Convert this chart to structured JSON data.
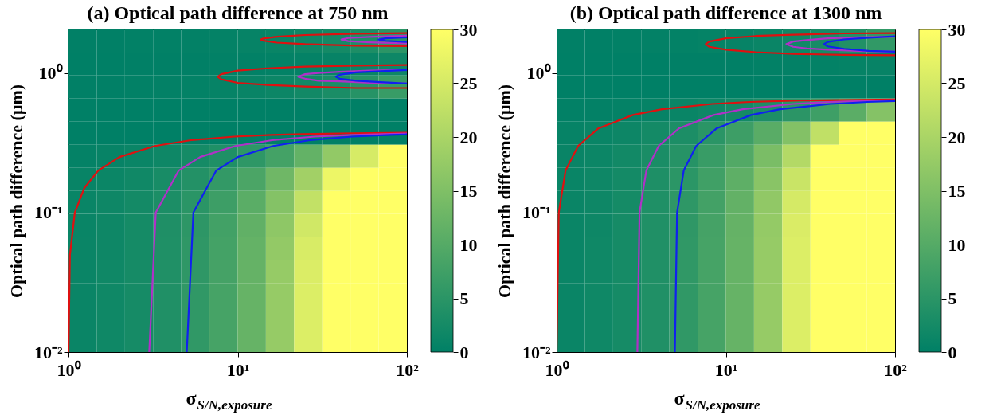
{
  "chart_data": [
    {
      "type": "heatmap",
      "title": "(a) Optical path difference at 750 nm",
      "xlabel": "σ$_{S/N,exposure}$",
      "ylabel": "Optical path difference  (μm)",
      "log": "xy",
      "xlim": [
        1,
        100
      ],
      "ylim": [
        0.01,
        2.05
      ],
      "xticks": [
        {
          "value": 1,
          "label": "10⁰"
        },
        {
          "value": 10,
          "label": "10¹"
        },
        {
          "value": 100,
          "label": "10²"
        }
      ],
      "yticks": [
        {
          "value": 0.01,
          "label": "10⁻²"
        },
        {
          "value": 0.1,
          "label": "10⁻¹"
        },
        {
          "value": 1,
          "label": "10⁰"
        }
      ],
      "clim": [
        0,
        30
      ],
      "cticks": [
        0,
        5,
        10,
        15,
        20,
        25,
        30
      ],
      "x": [
        1.21,
        1.78,
        2.61,
        3.83,
        5.62,
        8.25,
        12.1,
        17.8,
        26.1,
        38.3,
        56.2,
        82.5
      ],
      "y": [
        1.695,
        1.159,
        0.792,
        0.542,
        0.37,
        0.253,
        0.173,
        0.118,
        0.081,
        0.0553,
        0.0378,
        0.0259,
        0.0177,
        0.0121
      ],
      "cells": [
        [
          0.1,
          0.1,
          0.2,
          0.2,
          0.3,
          0.5,
          0.7,
          1.1,
          1.6,
          2.3,
          3.4,
          5.0
        ],
        [
          0.0,
          0.0,
          0.1,
          0.1,
          0.1,
          0.2,
          0.2,
          0.4,
          0.5,
          0.8,
          1.1,
          1.7
        ],
        [
          0.1,
          0.1,
          0.2,
          0.3,
          0.4,
          0.7,
          1.0,
          1.4,
          2.1,
          3.1,
          4.5,
          6.6
        ],
        [
          0,
          0,
          0,
          0,
          0,
          0,
          0,
          0,
          0,
          0,
          0,
          0
        ],
        [
          0,
          0,
          0,
          0,
          0,
          0,
          0,
          0,
          0,
          0,
          0,
          0
        ],
        [
          0.5,
          0.8,
          1.2,
          1.7,
          2.5,
          3.7,
          5.4,
          8.0,
          11.7,
          17.2,
          25.2,
          30
        ],
        [
          0.9,
          1.3,
          1.9,
          2.8,
          4.1,
          6.0,
          8.8,
          13.0,
          19.0,
          27.9,
          30,
          30
        ],
        [
          1.1,
          1.6,
          2.3,
          3.3,
          4.9,
          7.2,
          10.6,
          15.5,
          22.8,
          30,
          30,
          30
        ],
        [
          1.1,
          1.7,
          2.5,
          3.6,
          5.3,
          7.8,
          11.4,
          16.7,
          24.5,
          30,
          30,
          30
        ],
        [
          1.2,
          1.7,
          2.5,
          3.7,
          5.5,
          8.0,
          11.8,
          17.3,
          25.4,
          30,
          30,
          30
        ],
        [
          1.2,
          1.8,
          2.6,
          3.8,
          5.5,
          8.1,
          11.9,
          17.6,
          25.8,
          30,
          30,
          30
        ],
        [
          1.2,
          1.8,
          2.6,
          3.8,
          5.6,
          8.2,
          12.0,
          17.7,
          25.9,
          30,
          30,
          30
        ],
        [
          1.2,
          1.8,
          2.6,
          3.8,
          5.6,
          8.2,
          12.0,
          17.7,
          25.9,
          30,
          30,
          30
        ],
        [
          1.2,
          1.8,
          2.6,
          3.8,
          5.6,
          8.2,
          12.0,
          17.7,
          25.9,
          30,
          30,
          30
        ]
      ],
      "series": [
        {
          "type": "line",
          "color": "#e01010",
          "x": [
            1.0,
            1.02,
            1.09,
            1.24,
            1.5,
            2.0,
            3.24,
            5.3,
            9.5,
            15.9,
            23.9,
            47.8,
            100
          ],
          "values": [
            0.01,
            0.05,
            0.1,
            0.15,
            0.2,
            0.25,
            0.3,
            0.33,
            0.35,
            0.36,
            0.365,
            0.37,
            0.373
          ]
        },
        {
          "type": "line",
          "color": "#b030c8",
          "x": [
            3.0,
            3.28,
            4.48,
            6.0,
            9.7,
            16.0,
            28.6,
            47.8,
            71.6,
            100
          ],
          "values": [
            0.01,
            0.1,
            0.2,
            0.25,
            0.3,
            0.33,
            0.35,
            0.36,
            0.365,
            0.368
          ]
        },
        {
          "type": "line",
          "color": "#1020f0",
          "x": [
            5.0,
            5.47,
            7.47,
            10.0,
            16.2,
            26.7,
            47.6,
            79.6,
            100
          ],
          "values": [
            0.01,
            0.1,
            0.2,
            0.25,
            0.3,
            0.33,
            0.35,
            0.36,
            0.363
          ]
        },
        {
          "type": "line",
          "color": "#e01010",
          "x": [
            100,
            50,
            25,
            15,
            10,
            8,
            7.6,
            8,
            10,
            15,
            25,
            50,
            100
          ],
          "values": [
            1.14,
            1.13,
            1.11,
            1.08,
            1.04,
            0.98,
            0.94,
            0.9,
            0.85,
            0.82,
            0.8,
            0.78,
            0.78
          ]
        },
        {
          "type": "line",
          "color": "#b030c8",
          "x": [
            100,
            60,
            40,
            30,
            25,
            22.8,
            25,
            30,
            40,
            60,
            100
          ],
          "values": [
            1.05,
            1.04,
            1.02,
            1.0,
            0.98,
            0.94,
            0.91,
            0.88,
            0.87,
            0.85,
            0.84
          ]
        },
        {
          "type": "line",
          "color": "#1020f0",
          "x": [
            100,
            70,
            50,
            40,
            38,
            40,
            50,
            70,
            100
          ],
          "values": [
            1.05,
            1.03,
            1.01,
            0.97,
            0.94,
            0.91,
            0.88,
            0.86,
            0.84
          ]
        },
        {
          "type": "line",
          "color": "#e01010",
          "x": [
            100,
            50,
            25,
            17,
            14,
            13.7,
            14,
            17,
            25,
            50,
            100
          ],
          "values": [
            1.93,
            1.91,
            1.87,
            1.82,
            1.76,
            1.735,
            1.71,
            1.65,
            1.61,
            1.57,
            1.56
          ]
        },
        {
          "type": "line",
          "color": "#b030c8",
          "x": [
            100,
            60,
            45,
            41,
            45,
            60,
            100
          ],
          "values": [
            1.85,
            1.81,
            1.78,
            1.735,
            1.69,
            1.66,
            1.63
          ]
        },
        {
          "type": "line",
          "color": "#1020f0",
          "x": [
            100,
            75,
            68,
            75,
            100
          ],
          "values": [
            1.8,
            1.77,
            1.735,
            1.7,
            1.67
          ]
        }
      ]
    },
    {
      "type": "heatmap",
      "title": "(b) Optical path difference at 1300 nm",
      "xlabel": "σ$_{S/N,exposure}$",
      "ylabel": "Optical path difference  (μm)",
      "log": "xy",
      "xlim": [
        1,
        100
      ],
      "ylim": [
        0.01,
        2.05
      ],
      "xticks": [
        {
          "value": 1,
          "label": "10⁰"
        },
        {
          "value": 10,
          "label": "10¹"
        },
        {
          "value": 100,
          "label": "10²"
        }
      ],
      "yticks": [
        {
          "value": 0.01,
          "label": "10⁻²"
        },
        {
          "value": 0.1,
          "label": "10⁻¹"
        },
        {
          "value": 1,
          "label": "10⁰"
        }
      ],
      "clim": [
        0,
        30
      ],
      "cticks": [
        0,
        5,
        10,
        15,
        20,
        25,
        30
      ],
      "x": [
        1.21,
        1.78,
        2.61,
        3.83,
        5.62,
        8.25,
        12.1,
        17.8,
        26.1,
        38.3,
        56.2,
        82.5
      ],
      "y": [
        1.695,
        1.159,
        0.792,
        0.542,
        0.37,
        0.253,
        0.173,
        0.118,
        0.081,
        0.0553,
        0.0378,
        0.0259,
        0.0177,
        0.0121
      ],
      "cells": [
        [
          0.1,
          0.1,
          0.2,
          0.3,
          0.4,
          0.6,
          0.8,
          1.2,
          1.8,
          2.7,
          3.9,
          5.8
        ],
        [
          0.0,
          0.0,
          0.0,
          0.0,
          0.1,
          0.1,
          0.1,
          0.2,
          0.3,
          0.4,
          0.6,
          0.8
        ],
        [
          0,
          0,
          0,
          0,
          0,
          0,
          0,
          0,
          0,
          0,
          0,
          0
        ],
        [
          0.2,
          0.3,
          0.5,
          0.7,
          1.1,
          1.6,
          2.3,
          3.4,
          5.0,
          7.3,
          10.7,
          15.7
        ],
        [
          0.7,
          1.1,
          1.5,
          2.3,
          3.3,
          4.9,
          7.2,
          10.5,
          15.4,
          22.6,
          30,
          30
        ],
        [
          1.0,
          1.4,
          2.1,
          3.1,
          4.5,
          6.6,
          9.7,
          14.3,
          21.0,
          30,
          30,
          30
        ],
        [
          1.1,
          1.6,
          2.4,
          3.5,
          5.1,
          7.5,
          11.0,
          16.1,
          23.7,
          30,
          30,
          30
        ],
        [
          1.2,
          1.7,
          2.5,
          3.7,
          5.4,
          7.9,
          11.6,
          17.0,
          25.0,
          30,
          30,
          30
        ],
        [
          1.2,
          1.7,
          2.6,
          3.8,
          5.5,
          8.1,
          11.9,
          17.4,
          25.6,
          30,
          30,
          30
        ],
        [
          1.2,
          1.8,
          2.6,
          3.8,
          5.6,
          8.2,
          12.0,
          17.7,
          25.9,
          30,
          30,
          30
        ],
        [
          1.2,
          1.8,
          2.6,
          3.8,
          5.6,
          8.2,
          12.0,
          17.7,
          25.9,
          30,
          30,
          30
        ],
        [
          1.2,
          1.8,
          2.6,
          3.8,
          5.6,
          8.2,
          12.0,
          17.7,
          25.9,
          30,
          30,
          30
        ],
        [
          1.2,
          1.8,
          2.6,
          3.8,
          5.6,
          8.2,
          12.0,
          17.7,
          25.9,
          30,
          30,
          30
        ],
        [
          1.2,
          1.8,
          2.6,
          3.8,
          5.6,
          8.2,
          12.0,
          17.7,
          25.9,
          30,
          30,
          30
        ]
      ],
      "series": [
        {
          "type": "line",
          "color": "#e01010",
          "x": [
            1.0,
            1.03,
            1.13,
            1.34,
            1.76,
            2.82,
            4.2,
            8.3,
            13.8,
            27.6,
            100
          ],
          "values": [
            0.01,
            0.1,
            0.2,
            0.3,
            0.4,
            0.5,
            0.55,
            0.6,
            0.62,
            0.635,
            0.646
          ]
        },
        {
          "type": "line",
          "color": "#b030c8",
          "x": [
            3.0,
            3.09,
            3.39,
            4.01,
            5.27,
            8.47,
            12.6,
            24.9,
            41.3,
            82.6,
            100
          ],
          "values": [
            0.01,
            0.1,
            0.2,
            0.3,
            0.4,
            0.5,
            0.55,
            0.6,
            0.62,
            0.635,
            0.638
          ]
        },
        {
          "type": "line",
          "color": "#1020f0",
          "x": [
            5.0,
            5.15,
            5.64,
            6.68,
            8.79,
            14.1,
            20.9,
            41.5,
            68.8,
            100
          ],
          "values": [
            0.01,
            0.1,
            0.2,
            0.3,
            0.4,
            0.5,
            0.55,
            0.6,
            0.62,
            0.629
          ]
        },
        {
          "type": "line",
          "color": "#e01010",
          "x": [
            100,
            50,
            25,
            15,
            10,
            8,
            7.6,
            8,
            10,
            15,
            25,
            50,
            100
          ],
          "values": [
            1.93,
            1.92,
            1.88,
            1.84,
            1.77,
            1.68,
            1.61,
            1.54,
            1.47,
            1.41,
            1.37,
            1.35,
            1.34
          ]
        },
        {
          "type": "line",
          "color": "#b030c8",
          "x": [
            100,
            60,
            40,
            30,
            25,
            22.8,
            25,
            30,
            40,
            60,
            100
          ],
          "values": [
            1.82,
            1.8,
            1.77,
            1.72,
            1.68,
            1.61,
            1.54,
            1.5,
            1.47,
            1.44,
            1.42
          ]
        },
        {
          "type": "line",
          "color": "#1020f0",
          "x": [
            100,
            70,
            50,
            40,
            38,
            40,
            50,
            70,
            100
          ],
          "values": [
            1.83,
            1.79,
            1.74,
            1.67,
            1.61,
            1.55,
            1.49,
            1.44,
            1.42
          ]
        }
      ]
    }
  ]
}
